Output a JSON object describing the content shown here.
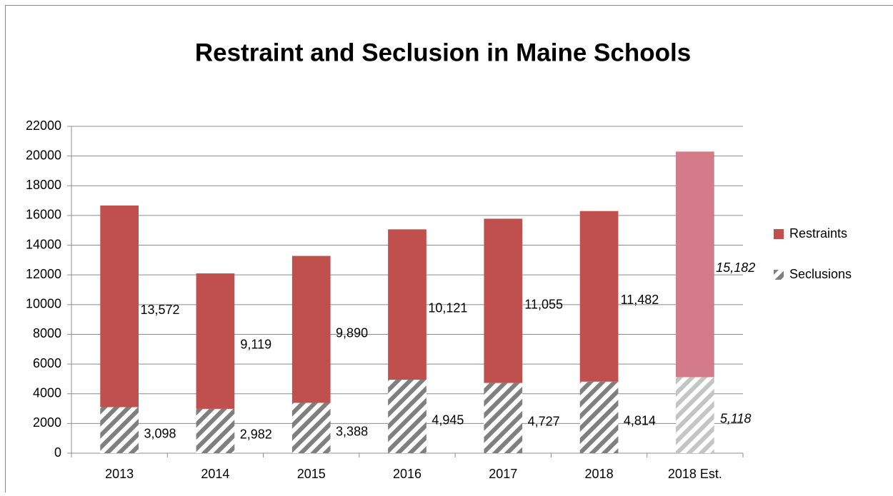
{
  "chart_data": {
    "type": "stacked_bar",
    "title": "Restraint and Seclusion in Maine Schools",
    "categories": [
      "2013",
      "2014",
      "2015",
      "2016",
      "2017",
      "2018",
      "2018 Est."
    ],
    "series": [
      {
        "name": "Seclusions",
        "color": "#7f7f7f",
        "hatch": true,
        "colors": [
          "#7f7f7f",
          "#7f7f7f",
          "#7f7f7f",
          "#7f7f7f",
          "#7f7f7f",
          "#7f7f7f",
          "#c4c4c4"
        ],
        "values": [
          3098,
          2982,
          3388,
          4945,
          4727,
          4814,
          5118
        ],
        "value_labels": [
          "3,098",
          "2,982",
          "3,388",
          "4,945",
          "4,727",
          "4,814",
          "5,118"
        ]
      },
      {
        "name": "Restraints",
        "color": "#c0504d",
        "hatch": false,
        "colors": [
          "#c0504d",
          "#c0504d",
          "#c0504d",
          "#c0504d",
          "#c0504d",
          "#c0504d",
          "#d47b8a"
        ],
        "values": [
          13572,
          9119,
          9890,
          10121,
          11055,
          11482,
          15182
        ],
        "value_labels": [
          "13,572",
          "9,119",
          "9,890",
          "10,121",
          "11,055",
          "11,482",
          "15,182"
        ]
      }
    ],
    "italic_labels": [
      false,
      false,
      false,
      false,
      false,
      false,
      true
    ],
    "ylim": [
      0,
      22000
    ],
    "yticks": [
      0,
      2000,
      4000,
      6000,
      8000,
      10000,
      12000,
      14000,
      16000,
      18000,
      20000,
      22000
    ],
    "grid": true,
    "legend": "right"
  }
}
